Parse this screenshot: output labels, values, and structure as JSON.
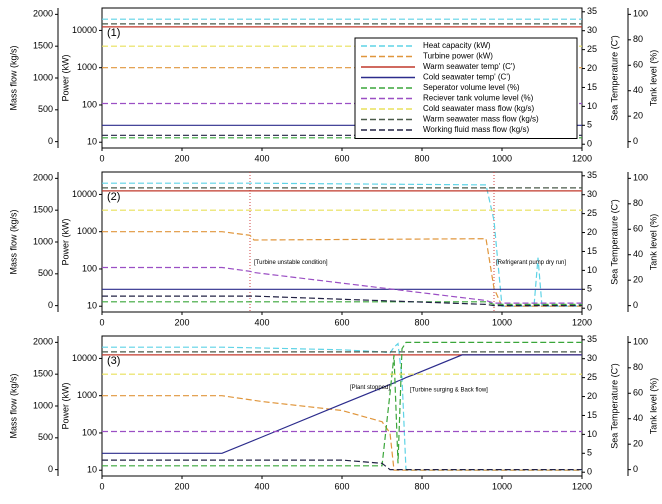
{
  "chart_data": [
    {
      "type": "line",
      "label": "(1)",
      "ylabel": "Mass flow (kg/s)",
      "power_label": "Power (kW)",
      "y2label": "Sea Temperature (C')",
      "tank_label": "Tank level (%)",
      "x": [
        0,
        1200
      ],
      "xlim": [
        0,
        1200
      ],
      "xticks": [
        0,
        200,
        400,
        600,
        800,
        1000,
        1200
      ],
      "ylim": [
        -100,
        2100
      ],
      "yticks": [
        0,
        500,
        1000,
        1500,
        2000
      ],
      "power_ylim": [
        7,
        40000
      ],
      "power_yticks": [
        10,
        100,
        1000,
        10000
      ],
      "power_log": true,
      "y2lim": [
        -1,
        36
      ],
      "y2ticks": [
        0,
        5,
        10,
        15,
        20,
        25,
        30,
        35
      ],
      "tank_ylim": [
        -5,
        105
      ],
      "tank_yticks": [
        0,
        20,
        40,
        60,
        80,
        100
      ],
      "legend": "upper right",
      "series": [
        {
          "name": "Heat capacity (kW)",
          "color": "#5fd3e6",
          "dash": true,
          "axis": "power",
          "values": [
            20000,
            20000
          ]
        },
        {
          "name": "Turbine power (kW)",
          "color": "#e0963c",
          "dash": true,
          "axis": "power",
          "values": [
            1000,
            1000
          ]
        },
        {
          "name": "Warm seawater temp' (C')",
          "color": "#c0392b",
          "dash": false,
          "axis": "y2",
          "values": [
            31,
            31
          ]
        },
        {
          "name": "Cold seawater temp' (C')",
          "color": "#2c2c8c",
          "dash": false,
          "axis": "y2",
          "values": [
            5,
            5
          ]
        },
        {
          "name": "Seperator volume level (%)",
          "color": "#3aa63a",
          "dash": true,
          "axis": "tank",
          "values": [
            3,
            3
          ]
        },
        {
          "name": "Reciever tank volume level (%)",
          "color": "#9b4fc4",
          "dash": true,
          "axis": "tank",
          "values": [
            30,
            30
          ]
        },
        {
          "name": "Cold seawater mass flow (kg/s)",
          "color": "#e8e05a",
          "dash": true,
          "axis": "y",
          "values": [
            1500,
            1500
          ]
        },
        {
          "name": "Warm seawater mass flow (kg/s)",
          "color": "#4a5a4a",
          "dash": true,
          "axis": "y",
          "values": [
            1850,
            1850
          ]
        },
        {
          "name": "Working fluid mass flow (kg/s)",
          "color": "#222244",
          "dash": true,
          "axis": "y",
          "values": [
            100,
            100
          ]
        }
      ]
    },
    {
      "type": "line",
      "label": "(2)",
      "ylabel": "Mass flow (kg/s)",
      "power_label": "Power (kW)",
      "y2label": "Sea Temperature (C')",
      "tank_label": "Tank level (%)",
      "x": [
        0,
        300,
        370,
        380,
        960,
        980,
        1000,
        1080,
        1090,
        1100,
        1200
      ],
      "xlim": [
        0,
        1200
      ],
      "xticks": [
        0,
        200,
        400,
        600,
        800,
        1000,
        1200
      ],
      "ylim": [
        -100,
        2100
      ],
      "yticks": [
        0,
        500,
        1000,
        1500,
        2000
      ],
      "power_ylim": [
        7,
        40000
      ],
      "power_yticks": [
        10,
        100,
        1000,
        10000
      ],
      "power_log": true,
      "y2lim": [
        -1,
        36
      ],
      "y2ticks": [
        0,
        5,
        10,
        15,
        20,
        25,
        30,
        35
      ],
      "tank_ylim": [
        -5,
        105
      ],
      "tank_yticks": [
        0,
        20,
        40,
        60,
        80,
        100
      ],
      "vlines": [
        370,
        980
      ],
      "vline_color": "#d04040",
      "annotations": [
        {
          "text": "[Turbine unstable condition]",
          "x": 380,
          "y": 680
        },
        {
          "text": "[Refrigerant pump dry run]",
          "x": 985,
          "y": 680
        }
      ],
      "series": [
        {
          "color": "#5fd3e6",
          "dash": true,
          "axis": "power",
          "values": [
            20000,
            20000,
            20000,
            20000,
            18000,
            2000,
            10,
            10,
            200,
            10,
            10
          ]
        },
        {
          "color": "#e0963c",
          "dash": true,
          "axis": "power",
          "values": [
            1000,
            1000,
            800,
            600,
            650,
            30,
            10,
            10,
            10,
            10,
            10
          ]
        },
        {
          "color": "#c0392b",
          "dash": false,
          "axis": "y2",
          "values": [
            31,
            31,
            31,
            31,
            31,
            31,
            31,
            31,
            31,
            31,
            31
          ]
        },
        {
          "color": "#2c2c8c",
          "dash": false,
          "axis": "y2",
          "values": [
            5,
            5,
            5,
            5,
            5,
            5,
            5,
            5,
            5,
            5,
            5
          ]
        },
        {
          "color": "#3aa63a",
          "dash": true,
          "axis": "tank",
          "values": [
            3,
            3,
            3,
            3,
            3,
            1,
            1,
            1,
            1,
            1,
            1
          ]
        },
        {
          "color": "#9b4fc4",
          "dash": true,
          "axis": "tank",
          "values": [
            30,
            30,
            27,
            26,
            4,
            2,
            2,
            2,
            2,
            2,
            2
          ]
        },
        {
          "color": "#e8e05a",
          "dash": true,
          "axis": "y",
          "values": [
            1500,
            1500,
            1500,
            1500,
            1500,
            1500,
            1500,
            1500,
            1500,
            1500,
            1500
          ]
        },
        {
          "color": "#4a5a4a",
          "dash": true,
          "axis": "y",
          "values": [
            1850,
            1850,
            1850,
            1850,
            1850,
            1850,
            1850,
            1850,
            1850,
            1850,
            1850
          ]
        },
        {
          "color": "#222244",
          "dash": true,
          "axis": "y",
          "values": [
            150,
            150,
            150,
            150,
            20,
            0,
            0,
            0,
            0,
            0,
            0
          ]
        }
      ]
    },
    {
      "type": "line",
      "label": "(3)",
      "ylabel": "Mass flow (kg/s)",
      "power_label": "Power (kW)",
      "y2label": "Sea Temperature (C')",
      "tank_label": "Tank level (%)",
      "x": [
        0,
        300,
        400,
        600,
        700,
        720,
        730,
        740,
        750,
        760,
        780,
        900,
        1200
      ],
      "xlim": [
        0,
        1200
      ],
      "xticks": [
        0,
        200,
        400,
        600,
        800,
        1000,
        1200
      ],
      "ylim": [
        -100,
        2100
      ],
      "yticks": [
        0,
        500,
        1000,
        1500,
        2000
      ],
      "power_ylim": [
        7,
        40000
      ],
      "power_yticks": [
        10,
        100,
        1000,
        10000
      ],
      "power_log": true,
      "y2lim": [
        -1,
        36
      ],
      "y2ticks": [
        0,
        5,
        10,
        15,
        20,
        25,
        30,
        35
      ],
      "tank_ylim": [
        -5,
        105
      ],
      "tank_yticks": [
        0,
        20,
        40,
        60,
        80,
        100
      ],
      "annotations": [
        {
          "text": "[Plant stopped]",
          "x": 620,
          "y": 1290
        },
        {
          "text": "[Turbine surging & Back flow]",
          "x": 770,
          "y": 1250
        }
      ],
      "series": [
        {
          "color": "#5fd3e6",
          "dash": true,
          "axis": "power",
          "values": [
            20000,
            20000,
            19000,
            17000,
            15000,
            14000,
            20000,
            25000,
            3000,
            10,
            10,
            10,
            10
          ]
        },
        {
          "color": "#e0963c",
          "dash": true,
          "axis": "power",
          "values": [
            1000,
            1000,
            700,
            400,
            200,
            100,
            10,
            10,
            10,
            10,
            10,
            10,
            10
          ]
        },
        {
          "color": "#c0392b",
          "dash": false,
          "axis": "y2",
          "values": [
            31,
            31,
            31,
            31,
            31,
            31,
            31,
            31,
            31,
            31,
            31,
            31,
            31
          ]
        },
        {
          "color": "#2c2c8c",
          "dash": false,
          "axis": "y2",
          "values": [
            5,
            5,
            9.3,
            18,
            22.3,
            23.2,
            23.6,
            24.1,
            24.5,
            25,
            25.8,
            31,
            31
          ]
        },
        {
          "color": "#3aa63a",
          "dash": true,
          "axis": "tank",
          "values": [
            3,
            3,
            3,
            3,
            3,
            60,
            90,
            5,
            95,
            100,
            100,
            100,
            100
          ]
        },
        {
          "color": "#9b4fc4",
          "dash": true,
          "axis": "tank",
          "values": [
            30,
            30,
            30,
            30,
            30,
            30,
            30,
            30,
            30,
            30,
            30,
            30,
            30
          ]
        },
        {
          "color": "#e8e05a",
          "dash": true,
          "axis": "y",
          "values": [
            1500,
            1500,
            1500,
            1500,
            1500,
            1500,
            1500,
            1500,
            1500,
            1500,
            1500,
            1500,
            1500
          ]
        },
        {
          "color": "#4a5a4a",
          "dash": true,
          "axis": "y",
          "values": [
            1850,
            1850,
            1850,
            1850,
            1850,
            1850,
            1850,
            1850,
            1850,
            1850,
            1850,
            1850,
            1850
          ]
        },
        {
          "color": "#222244",
          "dash": true,
          "axis": "y",
          "values": [
            150,
            150,
            150,
            150,
            100,
            0,
            0,
            0,
            0,
            0,
            0,
            0,
            0
          ]
        }
      ]
    }
  ]
}
